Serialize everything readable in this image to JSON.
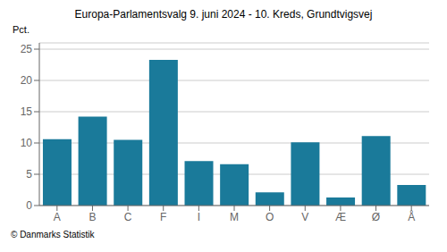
{
  "chart_data": {
    "type": "bar",
    "title": "Europa-Parlamentsvalg 9. juni 2024 - 10. Kreds, Grundtvigsvej",
    "ylabel": "Pct.",
    "annotations": [
      "© Danmarks Statistik"
    ],
    "categories": [
      "A",
      "B",
      "C",
      "F",
      "I",
      "M",
      "O",
      "V",
      "Æ",
      "Ø",
      "Å"
    ],
    "values": [
      10.6,
      14.2,
      10.5,
      23.3,
      7.1,
      6.6,
      2.1,
      10.1,
      1.3,
      11.1,
      3.3
    ],
    "color": "#1a7a9a",
    "ylim": [
      0,
      26
    ],
    "yticks": [
      0,
      5,
      10,
      15,
      20,
      25
    ],
    "grid": true
  }
}
